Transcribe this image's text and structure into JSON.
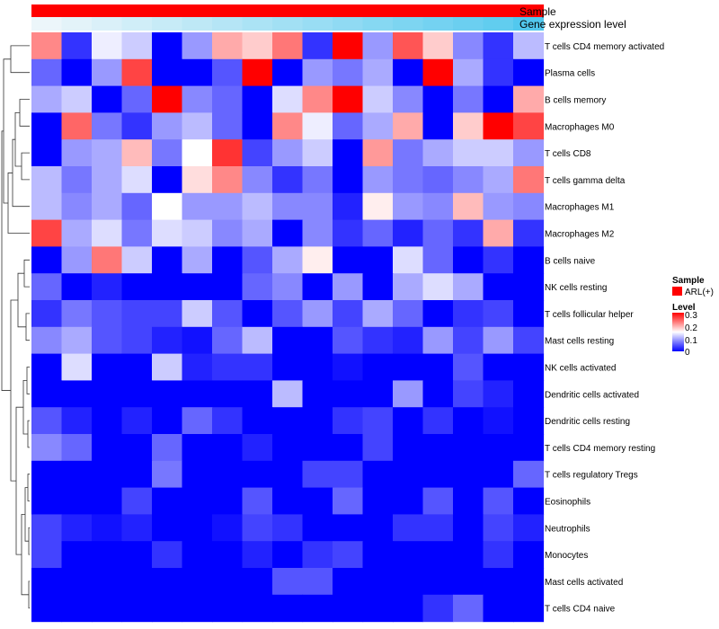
{
  "chart_data": {
    "type": "heatmap",
    "annotation_labels": [
      "Sample",
      "Gene expression level"
    ],
    "rows": [
      "T cells CD4 memory activated",
      "Plasma cells",
      "B cells memory",
      "Macrophages M0",
      "T cells CD8",
      "T cells gamma delta",
      "Macrophages M1",
      "Macrophages M2",
      "B cells naive",
      "NK cells resting",
      "T cells follicular helper",
      "Mast cells resting",
      "NK cells activated",
      "Dendritic cells activated",
      "Dendritic cells resting",
      "T cells CD4 memory resting",
      "T cells regulatory  Tregs",
      "Eosinophils",
      "Neutrophils",
      "Monocytes",
      "Mast cells activated",
      "T cells CD4 naive"
    ],
    "gene_expression_level": [
      0.0,
      0.06,
      0.12,
      0.18,
      0.24,
      0.3,
      0.36,
      0.42,
      0.48,
      0.54,
      0.6,
      0.66,
      0.72,
      0.78,
      0.84,
      0.9,
      1.0
    ],
    "values": [
      [
        0.22,
        0.03,
        0.14,
        0.12,
        0.0,
        0.09,
        0.2,
        0.18,
        0.23,
        0.03,
        0.3,
        0.09,
        0.25,
        0.18,
        0.08,
        0.03,
        0.11
      ],
      [
        0.06,
        0.0,
        0.09,
        0.26,
        0.0,
        0.0,
        0.05,
        0.3,
        0.0,
        0.09,
        0.07,
        0.1,
        0.0,
        0.3,
        0.1,
        0.03,
        0.0
      ],
      [
        0.1,
        0.12,
        0.0,
        0.06,
        0.3,
        0.08,
        0.06,
        0.0,
        0.13,
        0.22,
        0.3,
        0.12,
        0.08,
        0.0,
        0.07,
        0.0,
        0.2
      ],
      [
        0.0,
        0.24,
        0.07,
        0.03,
        0.09,
        0.11,
        0.06,
        0.0,
        0.22,
        0.14,
        0.06,
        0.1,
        0.2,
        0.0,
        0.18,
        0.3,
        0.26
      ],
      [
        0.0,
        0.09,
        0.1,
        0.19,
        0.07,
        0.15,
        0.27,
        0.04,
        0.09,
        0.12,
        0.0,
        0.21,
        0.07,
        0.1,
        0.12,
        0.12,
        0.09
      ],
      [
        0.11,
        0.07,
        0.1,
        0.13,
        0.0,
        0.17,
        0.22,
        0.08,
        0.03,
        0.07,
        0.0,
        0.09,
        0.07,
        0.06,
        0.08,
        0.1,
        0.23
      ],
      [
        0.11,
        0.08,
        0.1,
        0.06,
        0.15,
        0.09,
        0.09,
        0.11,
        0.08,
        0.08,
        0.02,
        0.16,
        0.09,
        0.08,
        0.19,
        0.09,
        0.08
      ],
      [
        0.26,
        0.1,
        0.13,
        0.07,
        0.13,
        0.12,
        0.08,
        0.1,
        0.0,
        0.08,
        0.03,
        0.06,
        0.02,
        0.06,
        0.03,
        0.2,
        0.03
      ],
      [
        0.0,
        0.09,
        0.23,
        0.12,
        0.0,
        0.1,
        0.0,
        0.05,
        0.1,
        0.16,
        0.0,
        0.0,
        0.13,
        0.06,
        0.0,
        0.03,
        0.0
      ],
      [
        0.06,
        0.0,
        0.02,
        0.0,
        0.0,
        0.0,
        0.0,
        0.06,
        0.08,
        0.0,
        0.09,
        0.0,
        0.1,
        0.13,
        0.1,
        0.0,
        0.0
      ],
      [
        0.03,
        0.07,
        0.05,
        0.04,
        0.04,
        0.12,
        0.05,
        0.0,
        0.05,
        0.09,
        0.04,
        0.1,
        0.06,
        0.0,
        0.03,
        0.04,
        0.0
      ],
      [
        0.08,
        0.1,
        0.05,
        0.04,
        0.02,
        0.01,
        0.06,
        0.11,
        0.0,
        0.0,
        0.05,
        0.03,
        0.02,
        0.09,
        0.04,
        0.09,
        0.04
      ],
      [
        0.0,
        0.13,
        0.0,
        0.0,
        0.12,
        0.02,
        0.03,
        0.03,
        0.0,
        0.0,
        0.01,
        0.0,
        0.0,
        0.0,
        0.05,
        0.0,
        0.0
      ],
      [
        0.0,
        0.0,
        0.0,
        0.0,
        0.0,
        0.0,
        0.0,
        0.0,
        0.11,
        0.0,
        0.0,
        0.0,
        0.09,
        0.0,
        0.04,
        0.02,
        0.0
      ],
      [
        0.05,
        0.02,
        0.0,
        0.02,
        0.0,
        0.06,
        0.03,
        0.0,
        0.0,
        0.0,
        0.03,
        0.04,
        0.0,
        0.03,
        0.0,
        0.01,
        0.0
      ],
      [
        0.08,
        0.06,
        0.0,
        0.0,
        0.06,
        0.0,
        0.0,
        0.02,
        0.0,
        0.0,
        0.0,
        0.04,
        0.0,
        0.0,
        0.0,
        0.0,
        0.0
      ],
      [
        0.0,
        0.0,
        0.0,
        0.0,
        0.07,
        0.0,
        0.0,
        0.0,
        0.0,
        0.04,
        0.04,
        0.0,
        0.0,
        0.0,
        0.0,
        0.0,
        0.06
      ],
      [
        0.0,
        0.0,
        0.0,
        0.04,
        0.0,
        0.0,
        0.0,
        0.05,
        0.0,
        0.0,
        0.06,
        0.0,
        0.0,
        0.05,
        0.0,
        0.05,
        0.0
      ],
      [
        0.04,
        0.02,
        0.01,
        0.02,
        0.0,
        0.0,
        0.01,
        0.04,
        0.03,
        0.0,
        0.0,
        0.0,
        0.03,
        0.03,
        0.0,
        0.04,
        0.02
      ],
      [
        0.04,
        0.0,
        0.0,
        0.0,
        0.03,
        0.0,
        0.0,
        0.02,
        0.0,
        0.03,
        0.04,
        0.0,
        0.0,
        0.0,
        0.0,
        0.03,
        0.0
      ],
      [
        0.0,
        0.0,
        0.0,
        0.0,
        0.0,
        0.0,
        0.0,
        0.0,
        0.05,
        0.05,
        0.0,
        0.0,
        0.0,
        0.0,
        0.0,
        0.0,
        0.0
      ],
      [
        0.0,
        0.0,
        0.0,
        0.0,
        0.0,
        0.0,
        0.0,
        0.0,
        0.0,
        0.0,
        0.0,
        0.0,
        0.0,
        0.03,
        0.06,
        0.0,
        0.0
      ]
    ],
    "legend": {
      "sample_title": "Sample",
      "sample_entry": "ARL(+)",
      "level_title": "Level",
      "level_ticks": [
        "0.3",
        "0.2",
        "0.1",
        "0"
      ],
      "level_range": [
        0,
        0.3
      ]
    },
    "colors": {
      "sample": "#ff0000",
      "expr_low": "#ecf6fa",
      "expr_high": "#52c8ee",
      "low": "#0000ff",
      "mid": "#ffffff",
      "high": "#ff0000"
    }
  }
}
